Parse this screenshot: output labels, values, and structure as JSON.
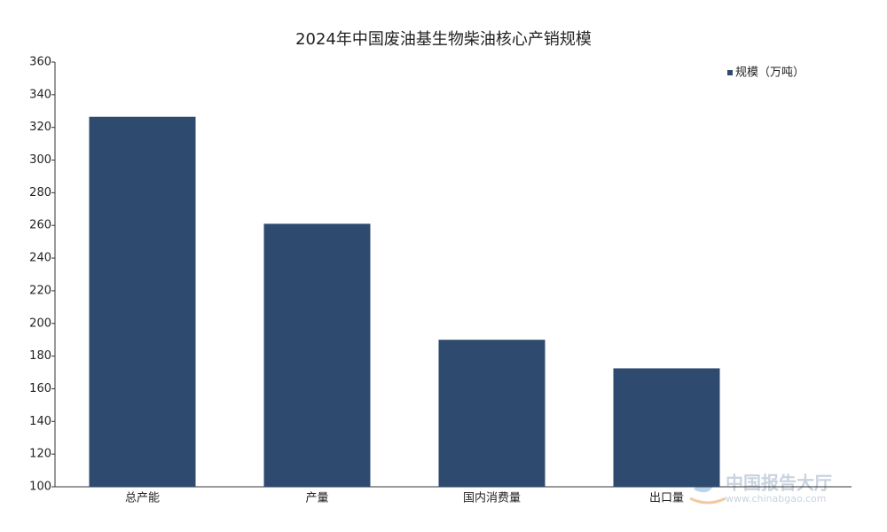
{
  "chart_data": {
    "type": "bar",
    "title": "2024年中国废油基生物柴油核心产销规模",
    "categories": [
      "总产能",
      "产量",
      "国内消费量",
      "出口量"
    ],
    "series": [
      {
        "name": "规模（万吨）",
        "color": "#2e4a6f",
        "values": [
          326.5,
          261,
          190,
          172.5
        ]
      }
    ],
    "ylim": [
      100,
      360
    ],
    "yticks": [
      100,
      120,
      140,
      160,
      180,
      200,
      220,
      240,
      260,
      280,
      300,
      320,
      340,
      360
    ],
    "grid": false,
    "legend": "top-right",
    "watermark": {
      "name": "中国报告大厅",
      "url": "www.chinabgao.com"
    }
  }
}
